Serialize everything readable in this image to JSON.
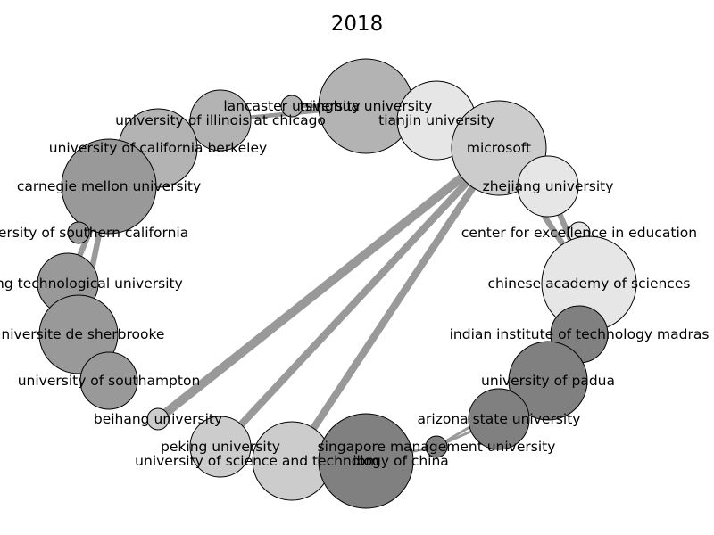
{
  "title": "2018",
  "colors": {
    "edge": "#999999",
    "node_stroke": "#000000",
    "shades": {
      "light": "#e6e6e6",
      "pale": "#cccccc",
      "mid": "#b3b3b3",
      "grey": "#999999",
      "dark": "#808080"
    }
  },
  "nodes": [
    {
      "id": "tsinghua",
      "label": "tsinghua university",
      "shade": "mid"
    },
    {
      "id": "lancaster",
      "label": "lancaster university",
      "shade": "mid"
    },
    {
      "id": "tianjin",
      "label": "tianjin university",
      "shade": "light"
    },
    {
      "id": "uic",
      "label": "university of illinois at chicago",
      "shade": "mid"
    },
    {
      "id": "microsoft",
      "label": "microsoft",
      "shade": "pale"
    },
    {
      "id": "berkeley",
      "label": "university of california berkeley",
      "shade": "mid"
    },
    {
      "id": "cmu",
      "label": "carnegie mellon university",
      "shade": "grey"
    },
    {
      "id": "zhejiang",
      "label": "zhejiang university",
      "shade": "light"
    },
    {
      "id": "usc",
      "label": "university of southern california",
      "shade": "grey"
    },
    {
      "id": "cee",
      "label": "center for excellence in education",
      "shade": "light"
    },
    {
      "id": "ntu",
      "label": "nanyang technological university",
      "shade": "grey"
    },
    {
      "id": "cas",
      "label": "chinese academy of sciences",
      "shade": "light"
    },
    {
      "id": "sherbrooke",
      "label": "universite de sherbrooke",
      "shade": "grey"
    },
    {
      "id": "iitm",
      "label": "indian institute of technology madras",
      "shade": "dark"
    },
    {
      "id": "southampton",
      "label": "university of southampton",
      "shade": "grey"
    },
    {
      "id": "padua",
      "label": "university of padua",
      "shade": "dark"
    },
    {
      "id": "beihang",
      "label": "beihang university",
      "shade": "pale"
    },
    {
      "id": "asu",
      "label": "arizona state university",
      "shade": "dark"
    },
    {
      "id": "peking",
      "label": "peking university",
      "shade": "pale"
    },
    {
      "id": "smu",
      "label": "singapore management university",
      "shade": "dark"
    },
    {
      "id": "ustc",
      "label": "university of science and technology of china",
      "shade": "pale"
    },
    {
      "id": "ibm",
      "label": "ibm",
      "shade": "dark"
    }
  ],
  "edges": [
    {
      "from": "microsoft",
      "to": "beihang",
      "weight": 5
    },
    {
      "from": "microsoft",
      "to": "peking",
      "weight": 4
    },
    {
      "from": "microsoft",
      "to": "ustc",
      "weight": 4
    },
    {
      "from": "microsoft",
      "to": "cas",
      "weight": 3
    },
    {
      "from": "zhejiang",
      "to": "cas",
      "weight": 3
    },
    {
      "from": "cee",
      "to": "cas",
      "weight": 2
    },
    {
      "from": "cmu",
      "to": "usc",
      "weight": 3
    },
    {
      "from": "cmu",
      "to": "ntu",
      "weight": 3
    },
    {
      "from": "cmu",
      "to": "sherbrooke",
      "weight": 3
    },
    {
      "from": "uic",
      "to": "tsinghua",
      "weight": 2
    },
    {
      "from": "lancaster",
      "to": "tsinghua",
      "weight": 2
    },
    {
      "from": "smu",
      "to": "padua",
      "weight": 1
    },
    {
      "from": "smu",
      "to": "asu",
      "weight": 1
    },
    {
      "from": "smu",
      "to": "ibm",
      "weight": 1
    }
  ]
}
